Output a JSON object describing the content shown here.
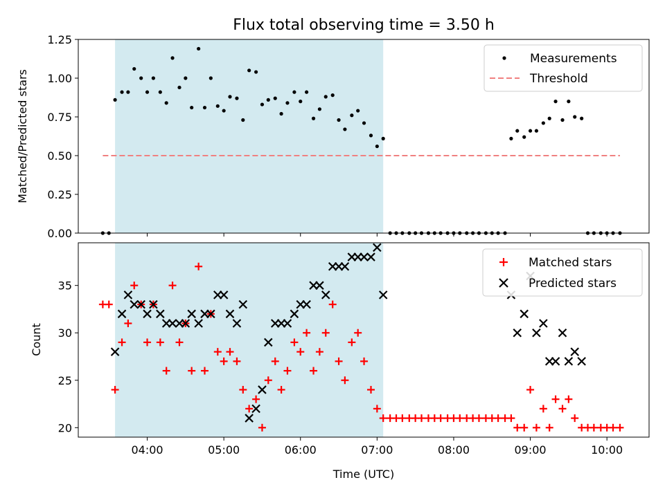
{
  "chart_data": [
    {
      "type": "scatter",
      "title": "Flux total observing time = 3.50 h",
      "ylabel": "Matched/Predicted stars",
      "xlabel": "",
      "ylim": [
        0,
        1.25
      ],
      "y_ticks": [
        "0.00",
        "0.25",
        "0.50",
        "0.75",
        "1.00",
        "1.25"
      ],
      "shaded_region_hours": [
        3.58,
        7.08
      ],
      "shade_color": "#d3eaf0",
      "legend": {
        "placement": "top-right",
        "entries": [
          {
            "label": "Measurements",
            "marker": "dot",
            "color": "#000000"
          },
          {
            "label": "Threshold",
            "marker": "dashed-line",
            "color": "#f08080"
          }
        ]
      },
      "threshold": {
        "value": 0.5,
        "x_range_hours": [
          3.42,
          10.17
        ],
        "color": "#f08080"
      },
      "series": [
        {
          "name": "Measurements",
          "color": "#000000",
          "points": [
            [
              3.42,
              0.0
            ],
            [
              3.5,
              0.0
            ],
            [
              3.58,
              0.86
            ],
            [
              3.67,
              0.91
            ],
            [
              3.75,
              0.91
            ],
            [
              3.83,
              1.06
            ],
            [
              3.92,
              1.0
            ],
            [
              4.0,
              0.91
            ],
            [
              4.08,
              1.0
            ],
            [
              4.17,
              0.91
            ],
            [
              4.25,
              0.84
            ],
            [
              4.33,
              1.13
            ],
            [
              4.42,
              0.94
            ],
            [
              4.5,
              1.0
            ],
            [
              4.58,
              0.81
            ],
            [
              4.67,
              1.19
            ],
            [
              4.75,
              0.81
            ],
            [
              4.83,
              1.0
            ],
            [
              4.92,
              0.82
            ],
            [
              5.0,
              0.79
            ],
            [
              5.08,
              0.88
            ],
            [
              5.17,
              0.87
            ],
            [
              5.25,
              0.73
            ],
            [
              5.33,
              1.05
            ],
            [
              5.42,
              1.04
            ],
            [
              5.5,
              0.83
            ],
            [
              5.58,
              0.86
            ],
            [
              5.67,
              0.87
            ],
            [
              5.75,
              0.77
            ],
            [
              5.83,
              0.84
            ],
            [
              5.92,
              0.91
            ],
            [
              6.0,
              0.85
            ],
            [
              6.08,
              0.91
            ],
            [
              6.17,
              0.74
            ],
            [
              6.25,
              0.8
            ],
            [
              6.33,
              0.88
            ],
            [
              6.42,
              0.89
            ],
            [
              6.5,
              0.73
            ],
            [
              6.58,
              0.67
            ],
            [
              6.67,
              0.76
            ],
            [
              6.75,
              0.79
            ],
            [
              6.83,
              0.71
            ],
            [
              6.92,
              0.63
            ],
            [
              7.0,
              0.56
            ],
            [
              7.08,
              0.61
            ],
            [
              7.17,
              0.0
            ],
            [
              7.25,
              0.0
            ],
            [
              7.33,
              0.0
            ],
            [
              7.42,
              0.0
            ],
            [
              7.5,
              0.0
            ],
            [
              7.58,
              0.0
            ],
            [
              7.67,
              0.0
            ],
            [
              7.75,
              0.0
            ],
            [
              7.83,
              0.0
            ],
            [
              7.92,
              0.0
            ],
            [
              8.0,
              0.0
            ],
            [
              8.08,
              0.0
            ],
            [
              8.17,
              0.0
            ],
            [
              8.25,
              0.0
            ],
            [
              8.33,
              0.0
            ],
            [
              8.42,
              0.0
            ],
            [
              8.5,
              0.0
            ],
            [
              8.58,
              0.0
            ],
            [
              8.67,
              0.0
            ],
            [
              8.75,
              0.61
            ],
            [
              8.83,
              0.66
            ],
            [
              8.92,
              0.62
            ],
            [
              9.0,
              0.66
            ],
            [
              9.08,
              0.66
            ],
            [
              9.17,
              0.71
            ],
            [
              9.25,
              0.74
            ],
            [
              9.33,
              0.85
            ],
            [
              9.42,
              0.73
            ],
            [
              9.5,
              0.85
            ],
            [
              9.58,
              0.75
            ],
            [
              9.67,
              0.74
            ],
            [
              9.75,
              0.0
            ],
            [
              9.83,
              0.0
            ],
            [
              9.92,
              0.0
            ],
            [
              10.0,
              0.0
            ],
            [
              10.08,
              0.0
            ],
            [
              10.17,
              0.0
            ]
          ]
        }
      ]
    },
    {
      "type": "scatter",
      "title": "",
      "ylabel": "Count",
      "xlabel": "Time (UTC)",
      "ylim": [
        19,
        39.5
      ],
      "y_ticks": [
        "20",
        "25",
        "30",
        "35"
      ],
      "x_ticks": [
        "04:00",
        "05:00",
        "06:00",
        "07:00",
        "08:00",
        "09:00",
        "10:00"
      ],
      "shaded_region_hours": [
        3.58,
        7.08
      ],
      "shade_color": "#d3eaf0",
      "legend": {
        "placement": "top-right",
        "entries": [
          {
            "label": "Matched stars",
            "marker": "plus",
            "color": "#ff0000"
          },
          {
            "label": "Predicted stars",
            "marker": "x",
            "color": "#000000"
          }
        ]
      },
      "series": [
        {
          "name": "Matched stars",
          "color": "#ff0000",
          "marker": "plus",
          "points": [
            [
              3.42,
              33
            ],
            [
              3.5,
              33
            ],
            [
              3.58,
              24
            ],
            [
              3.67,
              29
            ],
            [
              3.75,
              31
            ],
            [
              3.83,
              35
            ],
            [
              3.92,
              33
            ],
            [
              4.0,
              29
            ],
            [
              4.08,
              33
            ],
            [
              4.17,
              29
            ],
            [
              4.25,
              26
            ],
            [
              4.33,
              35
            ],
            [
              4.42,
              29
            ],
            [
              4.5,
              31
            ],
            [
              4.58,
              26
            ],
            [
              4.67,
              37
            ],
            [
              4.75,
              26
            ],
            [
              4.83,
              32
            ],
            [
              4.92,
              28
            ],
            [
              5.0,
              27
            ],
            [
              5.08,
              28
            ],
            [
              5.17,
              27
            ],
            [
              5.25,
              24
            ],
            [
              5.33,
              22
            ],
            [
              5.42,
              23
            ],
            [
              5.5,
              20
            ],
            [
              5.58,
              25
            ],
            [
              5.67,
              27
            ],
            [
              5.75,
              24
            ],
            [
              5.83,
              26
            ],
            [
              5.92,
              29
            ],
            [
              6.0,
              28
            ],
            [
              6.08,
              30
            ],
            [
              6.17,
              26
            ],
            [
              6.25,
              28
            ],
            [
              6.33,
              30
            ],
            [
              6.42,
              33
            ],
            [
              6.5,
              27
            ],
            [
              6.58,
              25
            ],
            [
              6.67,
              29
            ],
            [
              6.75,
              30
            ],
            [
              6.83,
              27
            ],
            [
              6.92,
              24
            ],
            [
              7.0,
              22
            ],
            [
              7.08,
              21
            ],
            [
              7.17,
              21
            ],
            [
              7.25,
              21
            ],
            [
              7.33,
              21
            ],
            [
              7.42,
              21
            ],
            [
              7.5,
              21
            ],
            [
              7.58,
              21
            ],
            [
              7.67,
              21
            ],
            [
              7.75,
              21
            ],
            [
              7.83,
              21
            ],
            [
              7.92,
              21
            ],
            [
              8.0,
              21
            ],
            [
              8.08,
              21
            ],
            [
              8.17,
              21
            ],
            [
              8.25,
              21
            ],
            [
              8.33,
              21
            ],
            [
              8.42,
              21
            ],
            [
              8.5,
              21
            ],
            [
              8.58,
              21
            ],
            [
              8.67,
              21
            ],
            [
              8.75,
              21
            ],
            [
              8.83,
              20
            ],
            [
              8.92,
              20
            ],
            [
              9.0,
              24
            ],
            [
              9.08,
              20
            ],
            [
              9.17,
              22
            ],
            [
              9.25,
              20
            ],
            [
              9.33,
              23
            ],
            [
              9.42,
              22
            ],
            [
              9.5,
              23
            ],
            [
              9.58,
              21
            ],
            [
              9.67,
              20
            ],
            [
              9.75,
              20
            ],
            [
              9.83,
              20
            ],
            [
              9.92,
              20
            ],
            [
              10.0,
              20
            ],
            [
              10.08,
              20
            ],
            [
              10.17,
              20
            ]
          ]
        },
        {
          "name": "Predicted stars",
          "color": "#000000",
          "marker": "x",
          "points": [
            [
              3.58,
              28
            ],
            [
              3.67,
              32
            ],
            [
              3.75,
              34
            ],
            [
              3.83,
              33
            ],
            [
              3.92,
              33
            ],
            [
              4.0,
              32
            ],
            [
              4.08,
              33
            ],
            [
              4.17,
              32
            ],
            [
              4.25,
              31
            ],
            [
              4.33,
              31
            ],
            [
              4.42,
              31
            ],
            [
              4.5,
              31
            ],
            [
              4.58,
              32
            ],
            [
              4.67,
              31
            ],
            [
              4.75,
              32
            ],
            [
              4.83,
              32
            ],
            [
              4.92,
              34
            ],
            [
              5.0,
              34
            ],
            [
              5.08,
              32
            ],
            [
              5.17,
              31
            ],
            [
              5.25,
              33
            ],
            [
              5.33,
              21
            ],
            [
              5.42,
              22
            ],
            [
              5.5,
              24
            ],
            [
              5.58,
              29
            ],
            [
              5.67,
              31
            ],
            [
              5.75,
              31
            ],
            [
              5.83,
              31
            ],
            [
              5.92,
              32
            ],
            [
              6.0,
              33
            ],
            [
              6.08,
              33
            ],
            [
              6.17,
              35
            ],
            [
              6.25,
              35
            ],
            [
              6.33,
              34
            ],
            [
              6.42,
              37
            ],
            [
              6.5,
              37
            ],
            [
              6.58,
              37
            ],
            [
              6.67,
              38
            ],
            [
              6.75,
              38
            ],
            [
              6.83,
              38
            ],
            [
              6.92,
              38
            ],
            [
              7.0,
              39
            ],
            [
              7.08,
              34
            ],
            [
              8.75,
              34
            ],
            [
              8.83,
              30
            ],
            [
              8.92,
              32
            ],
            [
              9.0,
              36
            ],
            [
              9.08,
              30
            ],
            [
              9.17,
              31
            ],
            [
              9.25,
              27
            ],
            [
              9.33,
              27
            ],
            [
              9.42,
              30
            ],
            [
              9.5,
              27
            ],
            [
              9.58,
              28
            ],
            [
              9.67,
              27
            ]
          ]
        }
      ]
    }
  ]
}
